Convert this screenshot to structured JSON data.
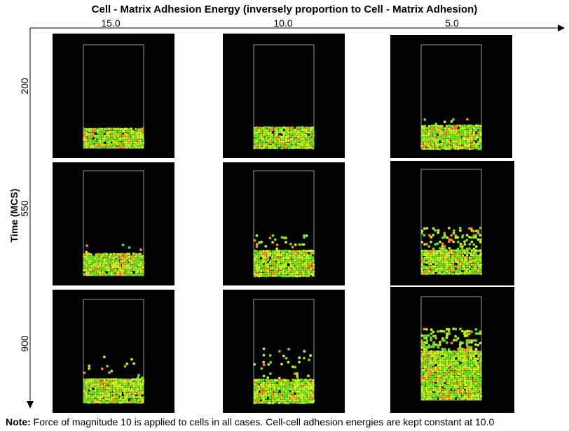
{
  "header": {
    "title": "Cell - Matrix Adhesion Energy (inversely proportion to Cell - Matrix Adhesion)"
  },
  "axes": {
    "x_labels": [
      "15.0",
      "10.0",
      "5.0"
    ],
    "y_title": "Time (MCS)",
    "y_labels": [
      "200",
      "550",
      "900"
    ]
  },
  "note": {
    "label": "Note:",
    "text": "Force of magnitude 10 is applied to cells in all cases. Cell-cell adhesion energies are kept constant at 10.0"
  },
  "colors": {
    "panel_bg": "#000000",
    "cell_green": "#6ee01a",
    "cell_yellow": "#c8f01e",
    "cell_orange": "#ff8a1c",
    "container_outline": "#9a9a9a"
  }
}
